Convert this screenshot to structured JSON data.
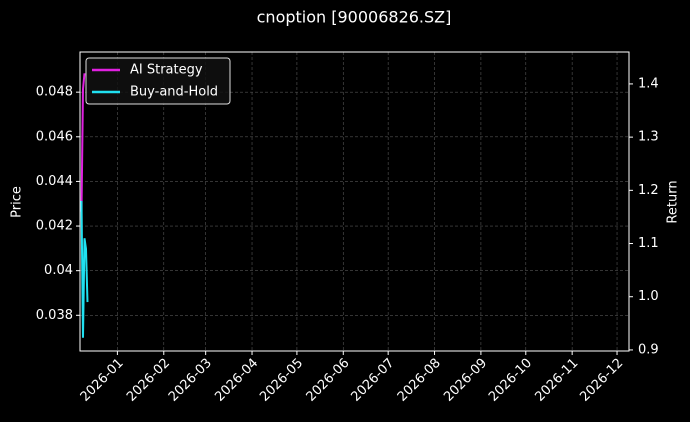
{
  "chart_data": {
    "type": "line",
    "title": "cnoption [90006826.SZ]",
    "ylabel": "Price",
    "y2label": "Return",
    "x": [
      "2025-12-08",
      "2025-12-09",
      "2025-12-10",
      "2025-12-11",
      "2025-12-12"
    ],
    "xlim": [
      "2025-12-07",
      "2026-12-09"
    ],
    "xticks": [
      {
        "value": "2026-01-01",
        "label": "2026-01"
      },
      {
        "value": "2026-02-01",
        "label": "2026-02"
      },
      {
        "value": "2026-03-01",
        "label": "2026-03"
      },
      {
        "value": "2026-04-01",
        "label": "2026-04"
      },
      {
        "value": "2026-05-01",
        "label": "2026-05"
      },
      {
        "value": "2026-06-01",
        "label": "2026-06"
      },
      {
        "value": "2026-07-01",
        "label": "2026-07"
      },
      {
        "value": "2026-08-01",
        "label": "2026-08"
      },
      {
        "value": "2026-09-01",
        "label": "2026-09"
      },
      {
        "value": "2026-10-01",
        "label": "2026-10"
      },
      {
        "value": "2026-11-01",
        "label": "2026-11"
      },
      {
        "value": "2026-12-01",
        "label": "2026-12"
      }
    ],
    "ylim": [
      0.0364,
      0.0498
    ],
    "yticks": [
      0.038,
      0.04,
      0.042,
      0.044,
      0.046,
      0.048
    ],
    "y2lim": [
      0.898,
      1.46
    ],
    "y2ticks": [
      0.9,
      {
        "value": 1,
        "label": "1.0"
      },
      1.1,
      1.2,
      1.3,
      1.4
    ],
    "grid": true,
    "legend": "upper left",
    "series": [
      {
        "name": "AI Strategy",
        "color": "#e020e0",
        "axis": "y2",
        "values": [
          1.16,
          1.39,
          1.42,
          null,
          null
        ]
      },
      {
        "name": "Buy-and-Hold",
        "color": "#20e0f0",
        "axis": "y2",
        "values": [
          1.18,
          0.923,
          1.11,
          1.09,
          0.99
        ]
      }
    ]
  }
}
